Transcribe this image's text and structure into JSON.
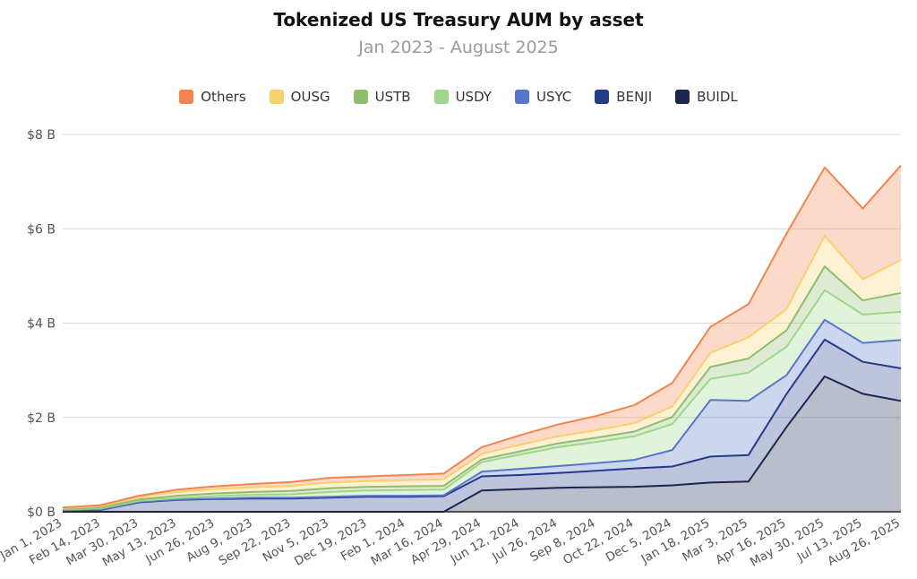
{
  "chart_data": {
    "type": "area",
    "stacked": true,
    "title": "Tokenized US Treasury AUM by asset",
    "subtitle": "Jan 2023 - August 2025",
    "xlabel": "",
    "ylabel": "",
    "ylim": [
      0,
      8
    ],
    "y_ticks": [
      "$0 B",
      "$2 B",
      "$4 B",
      "$6 B",
      "$8 B"
    ],
    "y_tick_values": [
      0,
      2,
      4,
      6,
      8
    ],
    "grid": true,
    "legend_position": "top-center",
    "x_tick_labels": [
      "Jan 1, 2023",
      "Feb 14, 2023",
      "Mar 30, 2023",
      "May 13, 2023",
      "Jun 26, 2023",
      "Aug 9, 2023",
      "Sep 22, 2023",
      "Nov 5, 2023",
      "Dec 19, 2023",
      "Feb 1, 2024",
      "Mar 16, 2024",
      "Apr 29, 2024",
      "Jun 12, 2024",
      "Jul 26, 2024",
      "Sep 8, 2024",
      "Oct 22, 2024",
      "Dec 5, 2024",
      "Jan 18, 2025",
      "Mar 3, 2025",
      "Apr 16, 2025",
      "May 30, 2025",
      "Jul 13, 2025",
      "Aug 26, 2025"
    ],
    "x": [
      "2023-01-01",
      "2023-02-14",
      "2023-03-30",
      "2023-05-13",
      "2023-06-26",
      "2023-08-09",
      "2023-09-22",
      "2023-11-05",
      "2023-12-19",
      "2024-02-01",
      "2024-03-16",
      "2024-04-29",
      "2024-06-12",
      "2024-07-26",
      "2024-09-08",
      "2024-10-22",
      "2024-12-05",
      "2025-01-18",
      "2025-03-03",
      "2025-04-16",
      "2025-05-30",
      "2025-07-13",
      "2025-08-26"
    ],
    "series": [
      {
        "name": "BUIDL",
        "color": "#1b2550",
        "values": [
          0,
          0,
          0,
          0,
          0,
          0,
          0,
          0,
          0,
          0,
          0,
          0.45,
          0.48,
          0.51,
          0.52,
          0.53,
          0.56,
          0.62,
          0.64,
          1.8,
          2.87,
          2.5,
          2.35
        ]
      },
      {
        "name": "BENJI",
        "color": "#263a8a",
        "values": [
          0.02,
          0.04,
          0.2,
          0.25,
          0.27,
          0.28,
          0.28,
          0.3,
          0.32,
          0.32,
          0.33,
          0.3,
          0.3,
          0.31,
          0.35,
          0.39,
          0.4,
          0.55,
          0.56,
          0.7,
          0.78,
          0.68,
          0.69
        ]
      },
      {
        "name": "USYC",
        "color": "#5876c9",
        "values": [
          0.01,
          0.01,
          0.01,
          0.01,
          0.01,
          0.02,
          0.02,
          0.02,
          0.02,
          0.02,
          0.02,
          0.1,
          0.13,
          0.15,
          0.16,
          0.18,
          0.35,
          1.2,
          1.15,
          0.4,
          0.42,
          0.4,
          0.6
        ]
      },
      {
        "name": "USDY",
        "color": "#9fd68a",
        "values": [
          0.02,
          0.02,
          0.02,
          0.03,
          0.05,
          0.06,
          0.07,
          0.1,
          0.11,
          0.12,
          0.12,
          0.2,
          0.3,
          0.4,
          0.45,
          0.5,
          0.55,
          0.45,
          0.6,
          0.6,
          0.63,
          0.6,
          0.6
        ]
      },
      {
        "name": "USTB",
        "color": "#8fbd6e",
        "values": [
          0.01,
          0.02,
          0.03,
          0.05,
          0.06,
          0.06,
          0.07,
          0.08,
          0.08,
          0.08,
          0.08,
          0.06,
          0.07,
          0.08,
          0.09,
          0.1,
          0.15,
          0.25,
          0.3,
          0.35,
          0.5,
          0.3,
          0.4
        ]
      },
      {
        "name": "OUSG",
        "color": "#f9d06e",
        "values": [
          0.02,
          0.03,
          0.05,
          0.08,
          0.09,
          0.1,
          0.11,
          0.12,
          0.12,
          0.13,
          0.14,
          0.12,
          0.14,
          0.15,
          0.16,
          0.18,
          0.22,
          0.3,
          0.45,
          0.45,
          0.65,
          0.45,
          0.7
        ]
      },
      {
        "name": "Others",
        "color": "#f5834e",
        "values": [
          0.01,
          0.02,
          0.03,
          0.05,
          0.06,
          0.07,
          0.08,
          0.1,
          0.1,
          0.11,
          0.12,
          0.14,
          0.2,
          0.25,
          0.3,
          0.38,
          0.5,
          0.55,
          0.7,
          1.6,
          1.45,
          1.5,
          2.0
        ]
      }
    ]
  }
}
